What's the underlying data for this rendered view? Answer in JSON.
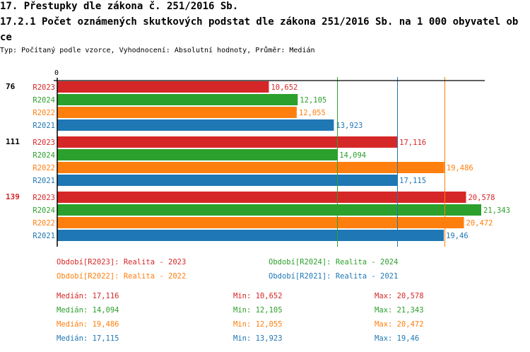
{
  "header": {
    "title": "17. Přestupky dle zákona č. 251/2016 Sb.",
    "subtitle": "17.2.1 Počet oznámených skutkových podstat dle zákona 251/2016 Sb. na 1 000 obyvatel obce",
    "info": "Typ: Počítaný podle vzorce, Vyhodnocení: Absolutní hodnoty, Průměr: Medián"
  },
  "chart_data": {
    "type": "bar",
    "orientation": "horizontal",
    "xlim": [
      0,
      21.343
    ],
    "x_tick_labels": [
      "0"
    ],
    "groups": [
      {
        "label": "76",
        "color": "#000000",
        "values": {
          "R2023": 10.652,
          "R2024": 12.105,
          "R2022": 12.055,
          "R2021": 13.923
        },
        "labels": {
          "R2023": "10,652",
          "R2024": "12,105",
          "R2022": "12,055",
          "R2021": "13,923"
        }
      },
      {
        "label": "111",
        "color": "#000000",
        "values": {
          "R2023": 17.116,
          "R2024": 14.094,
          "R2022": 19.486,
          "R2021": 17.115
        },
        "labels": {
          "R2023": "17,116",
          "R2024": "14,094",
          "R2022": "19,486",
          "R2021": "17,115"
        }
      },
      {
        "label": "139",
        "color": "#d62728",
        "values": {
          "R2023": 20.578,
          "R2024": 21.343,
          "R2022": 20.472,
          "R2021": 19.46
        },
        "labels": {
          "R2023": "20,578",
          "R2024": "21,343",
          "R2022": "20,472",
          "R2021": "19,46"
        }
      }
    ],
    "series": [
      {
        "name": "R2023",
        "color": "#d62728",
        "legend": "Období[R2023]: Realita - 2023",
        "median": 17.116,
        "stats": {
          "median": "Medián: 17,116",
          "min": "Min: 10,652",
          "max": "Max: 20,578"
        }
      },
      {
        "name": "R2024",
        "color": "#2ca02c",
        "legend": "Období[R2024]: Realita - 2024",
        "median": 14.094,
        "stats": {
          "median": "Medián: 14,094",
          "min": "Min: 12,105",
          "max": "Max: 21,343"
        }
      },
      {
        "name": "R2022",
        "color": "#ff7f0e",
        "legend": "Období[R2022]: Realita - 2022",
        "median": 19.486,
        "stats": {
          "median": "Medián: 19,486",
          "min": "Min: 12,055",
          "max": "Max: 20,472"
        }
      },
      {
        "name": "R2021",
        "color": "#1f77b4",
        "legend": "Období[R2021]: Realita - 2021",
        "median": 17.115,
        "stats": {
          "median": "Medián: 17,115",
          "min": "Min: 13,923",
          "max": "Max: 19,46"
        }
      }
    ],
    "median_lines": true
  }
}
